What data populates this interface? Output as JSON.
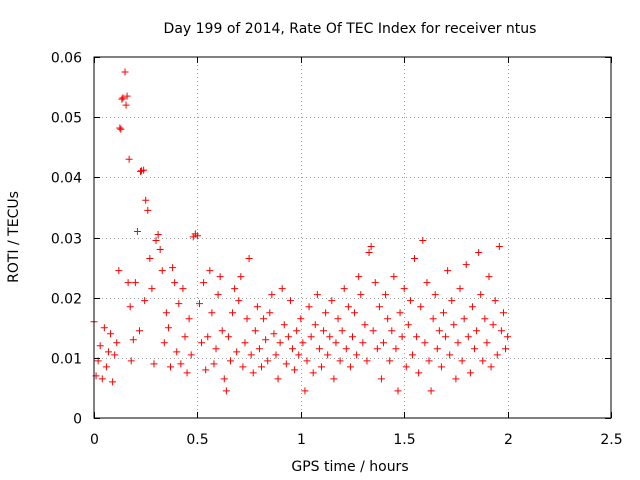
{
  "chart_data": {
    "type": "scatter",
    "title": "Day 199 of 2014, Rate Of TEC Index for receiver ntus",
    "xlabel": "GPS time / hours",
    "ylabel": "ROTI / TECUs",
    "xlim": [
      0,
      2.5
    ],
    "ylim": [
      0,
      0.06
    ],
    "x_ticks": [
      0,
      0.5,
      1,
      1.5,
      2,
      2.5
    ],
    "y_ticks": [
      0,
      0.01,
      0.02,
      0.03,
      0.04,
      0.05,
      0.06
    ],
    "x_tick_labels": [
      "0",
      "0.5",
      "1",
      "1.5",
      "2",
      "2.5"
    ],
    "y_tick_labels": [
      "0",
      "0.01",
      "0.02",
      "0.03",
      "0.04",
      "0.05",
      "0.06"
    ],
    "grid": true,
    "marker": "+",
    "color": "#ff0000",
    "series": [
      {
        "name": "ROTI",
        "points": [
          [
            0.0,
            0.016
          ],
          [
            0.01,
            0.007
          ],
          [
            0.02,
            0.0095
          ],
          [
            0.03,
            0.012
          ],
          [
            0.04,
            0.0065
          ],
          [
            0.05,
            0.015
          ],
          [
            0.06,
            0.0085
          ],
          [
            0.07,
            0.011
          ],
          [
            0.08,
            0.014
          ],
          [
            0.09,
            0.006
          ],
          [
            0.1,
            0.0105
          ],
          [
            0.11,
            0.0125
          ],
          [
            0.12,
            0.0245
          ],
          [
            0.125,
            0.0482
          ],
          [
            0.13,
            0.048
          ],
          [
            0.135,
            0.053
          ],
          [
            0.14,
            0.0532
          ],
          [
            0.15,
            0.0575
          ],
          [
            0.155,
            0.052
          ],
          [
            0.16,
            0.0535
          ],
          [
            0.165,
            0.0225
          ],
          [
            0.17,
            0.043
          ],
          [
            0.175,
            0.0185
          ],
          [
            0.18,
            0.0095
          ],
          [
            0.19,
            0.013
          ],
          [
            0.2,
            0.0225
          ],
          [
            0.21,
            0.031
          ],
          [
            0.22,
            0.0145
          ],
          [
            0.225,
            0.041
          ],
          [
            0.23,
            0.0411
          ],
          [
            0.24,
            0.0412
          ],
          [
            0.245,
            0.0195
          ],
          [
            0.25,
            0.0362
          ],
          [
            0.26,
            0.0345
          ],
          [
            0.27,
            0.0265
          ],
          [
            0.28,
            0.0215
          ],
          [
            0.29,
            0.009
          ],
          [
            0.3,
            0.0295
          ],
          [
            0.31,
            0.0305
          ],
          [
            0.32,
            0.028
          ],
          [
            0.33,
            0.0245
          ],
          [
            0.34,
            0.0125
          ],
          [
            0.35,
            0.0175
          ],
          [
            0.36,
            0.015
          ],
          [
            0.37,
            0.0085
          ],
          [
            0.38,
            0.025
          ],
          [
            0.39,
            0.0225
          ],
          [
            0.4,
            0.011
          ],
          [
            0.41,
            0.019
          ],
          [
            0.42,
            0.009
          ],
          [
            0.43,
            0.0215
          ],
          [
            0.44,
            0.0135
          ],
          [
            0.45,
            0.0075
          ],
          [
            0.46,
            0.0165
          ],
          [
            0.47,
            0.0105
          ],
          [
            0.48,
            0.0301
          ],
          [
            0.49,
            0.0306
          ],
          [
            0.5,
            0.0303
          ],
          [
            0.51,
            0.019
          ],
          [
            0.52,
            0.0125
          ],
          [
            0.53,
            0.0225
          ],
          [
            0.54,
            0.008
          ],
          [
            0.55,
            0.0135
          ],
          [
            0.56,
            0.0245
          ],
          [
            0.57,
            0.0175
          ],
          [
            0.58,
            0.009
          ],
          [
            0.59,
            0.0115
          ],
          [
            0.6,
            0.0205
          ],
          [
            0.61,
            0.0235
          ],
          [
            0.62,
            0.0145
          ],
          [
            0.63,
            0.0065
          ],
          [
            0.64,
            0.0045
          ],
          [
            0.65,
            0.0135
          ],
          [
            0.66,
            0.0095
          ],
          [
            0.67,
            0.0175
          ],
          [
            0.68,
            0.0215
          ],
          [
            0.69,
            0.011
          ],
          [
            0.7,
            0.0195
          ],
          [
            0.71,
            0.0235
          ],
          [
            0.72,
            0.0085
          ],
          [
            0.73,
            0.0125
          ],
          [
            0.74,
            0.0165
          ],
          [
            0.75,
            0.0265
          ],
          [
            0.76,
            0.0105
          ],
          [
            0.77,
            0.0075
          ],
          [
            0.78,
            0.0145
          ],
          [
            0.79,
            0.0185
          ],
          [
            0.8,
            0.0115
          ],
          [
            0.81,
            0.0085
          ],
          [
            0.82,
            0.0165
          ],
          [
            0.83,
            0.013
          ],
          [
            0.84,
            0.0095
          ],
          [
            0.85,
            0.0175
          ],
          [
            0.86,
            0.0205
          ],
          [
            0.87,
            0.014
          ],
          [
            0.88,
            0.0105
          ],
          [
            0.89,
            0.0065
          ],
          [
            0.9,
            0.0125
          ],
          [
            0.91,
            0.0215
          ],
          [
            0.92,
            0.0155
          ],
          [
            0.93,
            0.009
          ],
          [
            0.94,
            0.0135
          ],
          [
            0.95,
            0.0195
          ],
          [
            0.96,
            0.0115
          ],
          [
            0.97,
            0.008
          ],
          [
            0.98,
            0.0145
          ],
          [
            0.99,
            0.0105
          ],
          [
            1.0,
            0.0165
          ],
          [
            1.01,
            0.0125
          ],
          [
            1.02,
            0.0045
          ],
          [
            1.03,
            0.0095
          ],
          [
            1.04,
            0.0185
          ],
          [
            1.05,
            0.0135
          ],
          [
            1.06,
            0.0075
          ],
          [
            1.07,
            0.0155
          ],
          [
            1.08,
            0.0205
          ],
          [
            1.09,
            0.0115
          ],
          [
            1.1,
            0.0085
          ],
          [
            1.11,
            0.0145
          ],
          [
            1.12,
            0.0175
          ],
          [
            1.13,
            0.0105
          ],
          [
            1.14,
            0.0135
          ],
          [
            1.15,
            0.0195
          ],
          [
            1.16,
            0.0065
          ],
          [
            1.17,
            0.0125
          ],
          [
            1.18,
            0.0165
          ],
          [
            1.19,
            0.0095
          ],
          [
            1.2,
            0.0145
          ],
          [
            1.21,
            0.0215
          ],
          [
            1.22,
            0.0115
          ],
          [
            1.23,
            0.0185
          ],
          [
            1.24,
            0.0085
          ],
          [
            1.25,
            0.0135
          ],
          [
            1.26,
            0.0175
          ],
          [
            1.27,
            0.0105
          ],
          [
            1.28,
            0.0235
          ],
          [
            1.29,
            0.0205
          ],
          [
            1.3,
            0.0125
          ],
          [
            1.31,
            0.0155
          ],
          [
            1.32,
            0.0095
          ],
          [
            1.33,
            0.0275
          ],
          [
            1.34,
            0.0285
          ],
          [
            1.35,
            0.0145
          ],
          [
            1.36,
            0.0225
          ],
          [
            1.37,
            0.0115
          ],
          [
            1.38,
            0.0185
          ],
          [
            1.39,
            0.0065
          ],
          [
            1.4,
            0.0125
          ],
          [
            1.41,
            0.0205
          ],
          [
            1.42,
            0.0165
          ],
          [
            1.43,
            0.0095
          ],
          [
            1.44,
            0.0145
          ],
          [
            1.45,
            0.0235
          ],
          [
            1.46,
            0.0115
          ],
          [
            1.47,
            0.0045
          ],
          [
            1.48,
            0.0175
          ],
          [
            1.49,
            0.0135
          ],
          [
            1.5,
            0.0215
          ],
          [
            1.51,
            0.0085
          ],
          [
            1.52,
            0.0155
          ],
          [
            1.53,
            0.0195
          ],
          [
            1.54,
            0.0105
          ],
          [
            1.55,
            0.0265
          ],
          [
            1.56,
            0.0135
          ],
          [
            1.57,
            0.0075
          ],
          [
            1.58,
            0.0185
          ],
          [
            1.59,
            0.0295
          ],
          [
            1.6,
            0.0125
          ],
          [
            1.61,
            0.0225
          ],
          [
            1.62,
            0.0095
          ],
          [
            1.63,
            0.0045
          ],
          [
            1.64,
            0.0165
          ],
          [
            1.65,
            0.0205
          ],
          [
            1.66,
            0.0115
          ],
          [
            1.67,
            0.0145
          ],
          [
            1.68,
            0.0085
          ],
          [
            1.69,
            0.0175
          ],
          [
            1.7,
            0.0135
          ],
          [
            1.71,
            0.0245
          ],
          [
            1.72,
            0.0105
          ],
          [
            1.73,
            0.0195
          ],
          [
            1.74,
            0.0155
          ],
          [
            1.75,
            0.0065
          ],
          [
            1.76,
            0.0125
          ],
          [
            1.77,
            0.0215
          ],
          [
            1.78,
            0.0095
          ],
          [
            1.79,
            0.0165
          ],
          [
            1.8,
            0.0255
          ],
          [
            1.81,
            0.0135
          ],
          [
            1.82,
            0.0075
          ],
          [
            1.83,
            0.0185
          ],
          [
            1.84,
            0.0115
          ],
          [
            1.85,
            0.0145
          ],
          [
            1.86,
            0.0275
          ],
          [
            1.87,
            0.0205
          ],
          [
            1.88,
            0.0095
          ],
          [
            1.89,
            0.0165
          ],
          [
            1.9,
            0.0125
          ],
          [
            1.91,
            0.0235
          ],
          [
            1.92,
            0.0085
          ],
          [
            1.93,
            0.0155
          ],
          [
            1.94,
            0.0195
          ],
          [
            1.95,
            0.0105
          ],
          [
            1.96,
            0.0285
          ],
          [
            1.97,
            0.0145
          ],
          [
            1.98,
            0.0175
          ],
          [
            1.99,
            0.0115
          ],
          [
            2.0,
            0.0135
          ]
        ]
      }
    ]
  }
}
